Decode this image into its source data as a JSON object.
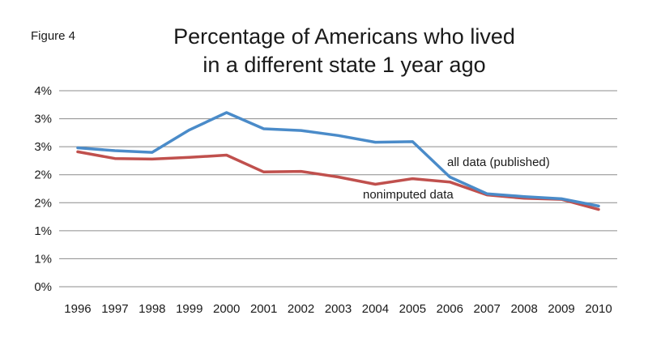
{
  "figure_label": "Figure 4",
  "chart_data": {
    "type": "line",
    "title_lines": [
      "Percentage of Americans who lived",
      "in a different state 1 year ago"
    ],
    "xlabel": "",
    "ylabel": "",
    "categories": [
      "1996",
      "1997",
      "1998",
      "1999",
      "2000",
      "2001",
      "2002",
      "2003",
      "2004",
      "2005",
      "2006",
      "2007",
      "2008",
      "2009",
      "2010"
    ],
    "y_tick_values": [
      0,
      0.5,
      1.0,
      1.5,
      2.0,
      2.5,
      3.0,
      3.5
    ],
    "y_tick_labels": [
      "0%",
      "1%",
      "1%",
      "2%",
      "2%",
      "3%",
      "3%",
      "4%"
    ],
    "ylim": [
      0,
      3.5
    ],
    "grid": true,
    "series": [
      {
        "name": "all data (published)",
        "color": "#4a8bc9",
        "values": [
          2.48,
          2.43,
          2.4,
          2.8,
          3.11,
          2.82,
          2.79,
          2.7,
          2.58,
          2.59,
          1.96,
          1.66,
          1.61,
          1.57,
          1.44
        ]
      },
      {
        "name": "nonimputed data",
        "color": "#c0504d",
        "values": [
          2.41,
          2.29,
          2.28,
          2.31,
          2.35,
          2.05,
          2.06,
          1.96,
          1.83,
          1.93,
          1.87,
          1.64,
          1.58,
          1.56,
          1.38
        ]
      }
    ]
  }
}
